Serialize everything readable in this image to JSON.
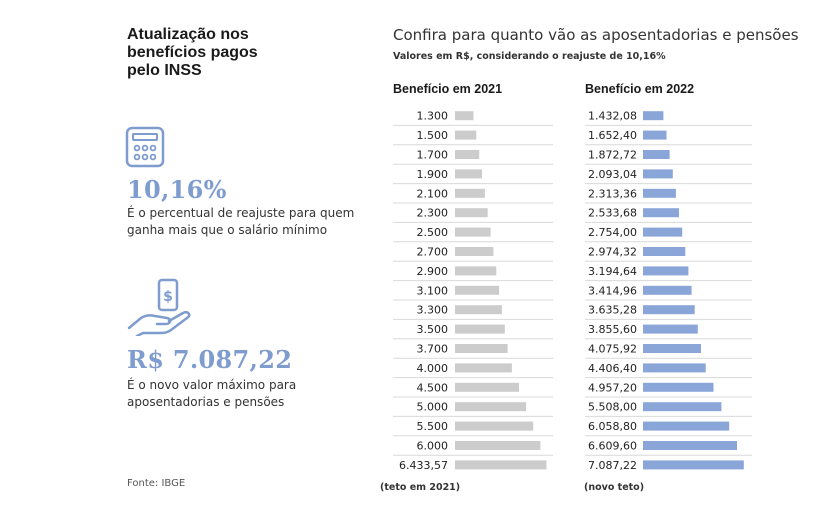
{
  "left_panel": {
    "headline": "Atualização nos\nbenefícios pagos\npelo INSS",
    "stat1": {
      "icon": "calculator-icon",
      "value": "10,16%",
      "description": "É o percentual de reajuste para quem ganha mais que o salário mínimo"
    },
    "stat2": {
      "icon": "hand-money-icon",
      "value": "R$ 7.087,22",
      "description": "É o novo valor máximo para aposentadorias e pensões"
    },
    "source": "Fonte: IBGE"
  },
  "colors": {
    "accent": "#7f9ccf",
    "bar_2021": "#cccccc",
    "bar_2022": "#8aa6d8",
    "row_divider": "#d9d9d9"
  },
  "chart_data": {
    "type": "bar",
    "title": "Confira para quanto vão as aposentadorias e pensões",
    "subtitle": "Valores em R$, considerando o reajuste de 10,16%",
    "series": [
      {
        "name": "Benefício em 2021",
        "values": [
          1300,
          1500,
          1700,
          1900,
          2100,
          2300,
          2500,
          2700,
          2900,
          3100,
          3300,
          3500,
          3700,
          4000,
          4500,
          5000,
          5500,
          6000,
          6433.57
        ],
        "labels": [
          "1.300",
          "1.500",
          "1.700",
          "1.900",
          "2.100",
          "2.300",
          "2.500",
          "2.700",
          "2.900",
          "3.100",
          "3.300",
          "3.500",
          "3.700",
          "4.000",
          "4.500",
          "5.000",
          "5.500",
          "6.000",
          "6.433,57"
        ],
        "footnote": "(teto em 2021)"
      },
      {
        "name": "Benefício em 2022",
        "values": [
          1432.08,
          1652.4,
          1872.72,
          2093.04,
          2313.36,
          2533.68,
          2754.0,
          2974.32,
          3194.64,
          3414.96,
          3635.28,
          3855.6,
          4075.92,
          4406.4,
          4957.2,
          5508.0,
          6058.8,
          6609.6,
          7087.22
        ],
        "labels": [
          "1.432,08",
          "1.652,40",
          "1.872,72",
          "2.093,04",
          "2.313,36",
          "2.533,68",
          "2.754,00",
          "2.974,32",
          "3.194,64",
          "3.414,96",
          "3.635,28",
          "3.855,60",
          "4.075,92",
          "4.406,40",
          "4.957,20",
          "5.508,00",
          "6.058,80",
          "6.609,60",
          "7.087,22"
        ],
        "footnote": "(novo teto)"
      }
    ],
    "xlim": [
      0,
      7100
    ],
    "grid": false,
    "legend": "none"
  }
}
